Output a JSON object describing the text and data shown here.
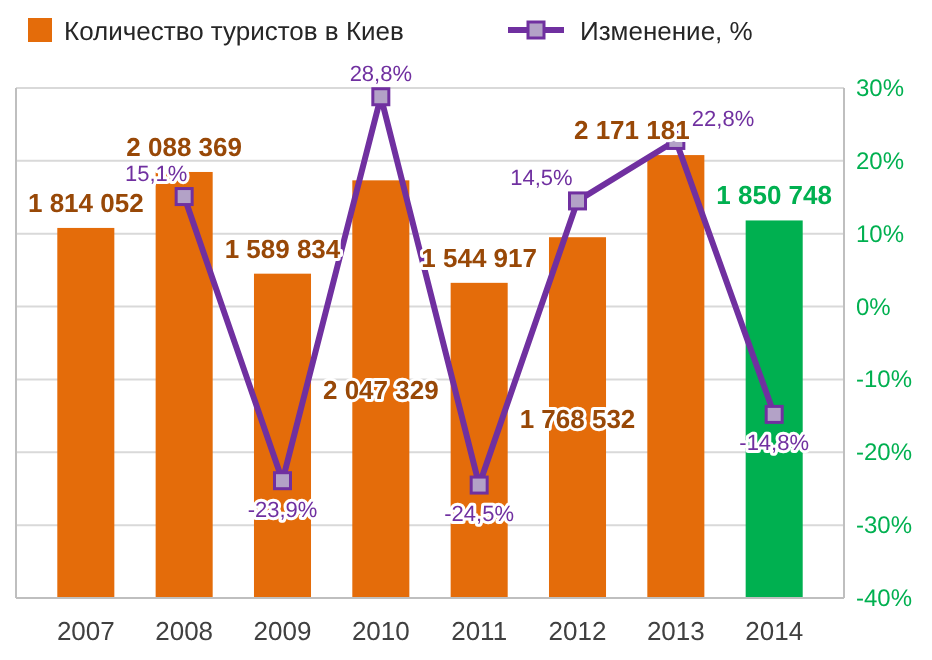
{
  "chart_data": {
    "type": "bar",
    "categories": [
      "2007",
      "2008",
      "2009",
      "2010",
      "2011",
      "2012",
      "2013",
      "2014"
    ],
    "series": [
      {
        "name": "Количество туристов в Киев",
        "color": "#e46c0a",
        "colors": [
          "#e46c0a",
          "#e46c0a",
          "#e46c0a",
          "#e46c0a",
          "#e46c0a",
          "#e46c0a",
          "#e46c0a",
          "#00b050"
        ],
        "values": [
          1814052,
          2088369,
          1589834,
          2047329,
          1544917,
          1768532,
          2171181,
          1850748
        ],
        "value_labels": [
          "1 814 052",
          "2 088 369",
          "1 589 834",
          "2 047 329",
          "1 544 917",
          "1 768 532",
          "2 171 181",
          "1 850 748"
        ]
      },
      {
        "name": "Изменение, %",
        "type": "line",
        "axis": "y2",
        "color": "#7030a0",
        "marker": "square",
        "values": [
          null,
          15.1,
          -23.9,
          28.8,
          -24.5,
          14.5,
          22.8,
          -14.8
        ],
        "value_labels": [
          null,
          "15,1%",
          "-23,9%",
          "28,8%",
          "-24,5%",
          "14,5%",
          "22,8%",
          "-14,8%"
        ]
      }
    ],
    "ylim": [
      0,
      2500000
    ],
    "y2lim": [
      -40,
      30
    ],
    "y2ticks": [
      {
        "value": -40,
        "label": "-40%"
      },
      {
        "value": -30,
        "label": "-30%"
      },
      {
        "value": -20,
        "label": "-20%"
      },
      {
        "value": -10,
        "label": "-10%"
      },
      {
        "value": 0,
        "label": "0%"
      },
      {
        "value": 10,
        "label": "10%"
      },
      {
        "value": 20,
        "label": "20%"
      },
      {
        "value": 30,
        "label": "30%"
      }
    ],
    "grid": true,
    "legend": "top"
  }
}
